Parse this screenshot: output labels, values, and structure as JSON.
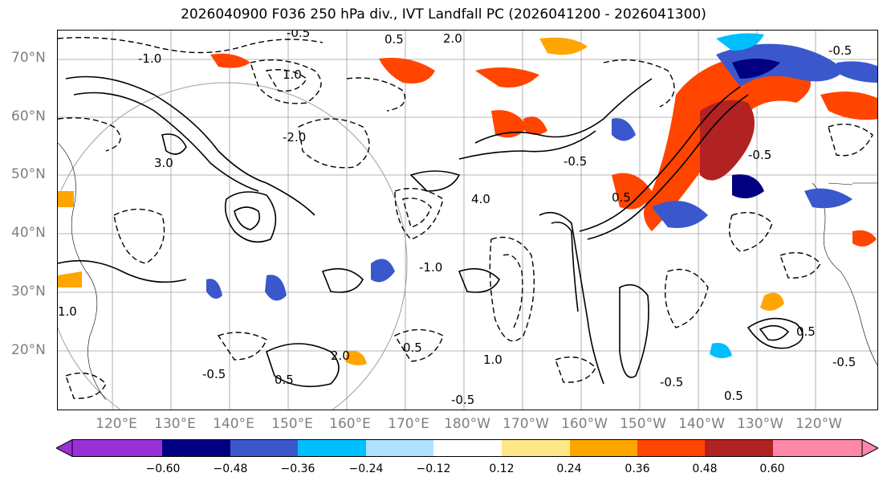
{
  "title": "2026040900 F036 250 hPa div., IVT Landfall PC (2026041200 - 2026041300)",
  "lat_labels": [
    "70°N",
    "60°N",
    "50°N",
    "40°N",
    "30°N",
    "20°N"
  ],
  "lon_labels": [
    "120°E",
    "130°E",
    "140°E",
    "150°E",
    "160°E",
    "170°E",
    "180°W",
    "170°W",
    "160°W",
    "150°W",
    "140°W",
    "130°W",
    "120°W"
  ],
  "colorbar": {
    "colors": [
      "#9b30d9",
      "#000080",
      "#3a58cc",
      "#00bfff",
      "#b0e2ff",
      "#ffffff",
      "#ffe88a",
      "#ffa500",
      "#ff4500",
      "#b22222",
      "#ff88aa"
    ],
    "ticks": [
      "−0.60",
      "−0.48",
      "−0.36",
      "−0.24",
      "−0.12",
      "0.12",
      "0.24",
      "0.36",
      "0.48",
      "0.60"
    ]
  },
  "contour_labels": [
    "-0.5",
    "-1.0",
    "0.5",
    "1.0",
    "2.0",
    "-2.0",
    "3.0",
    "4.0",
    "-0.5",
    "0.5",
    "1.0",
    "-0.5",
    "0.5",
    "-1.0",
    "2.0",
    "0.5",
    "-0.5",
    "-0.5",
    "0.5",
    "1.0",
    "-0.5",
    "-0.5",
    "0.5",
    "-0.5"
  ],
  "colors": {
    "gridline": "#9e9e9e",
    "axis_text": "#7f7f7f",
    "contour": "#000000"
  }
}
